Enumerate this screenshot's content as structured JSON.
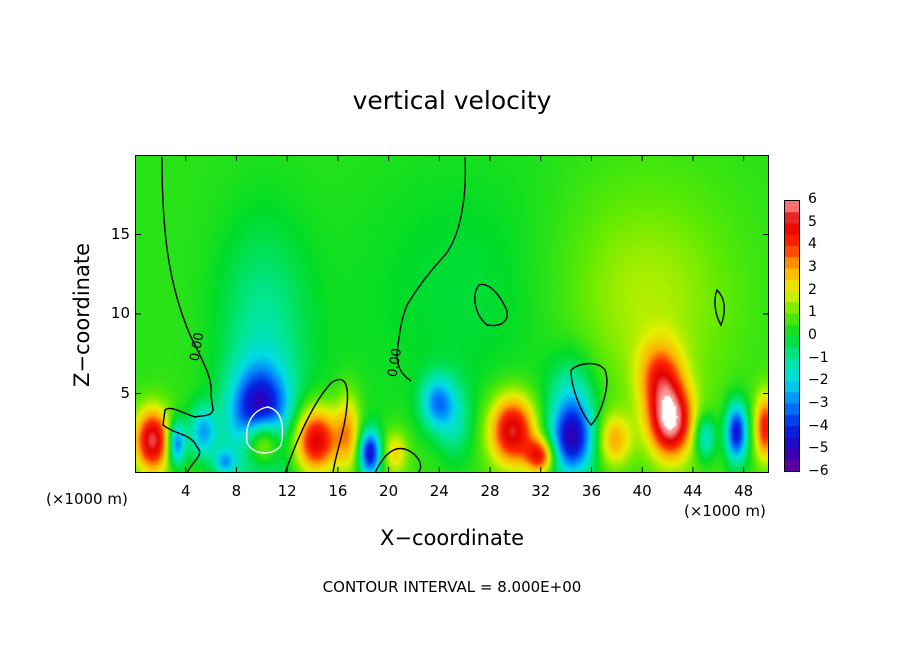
{
  "chart_data": {
    "type": "heatmap",
    "title": "vertical velocity",
    "xlabel": "X−coordinate",
    "ylabel": "Z−coordinate",
    "x_unit_left": "(×1000 m)",
    "x_unit_right": "(×1000 m)",
    "xlim": [
      0,
      50
    ],
    "ylim": [
      0,
      20
    ],
    "x_ticks": [
      4,
      8,
      12,
      16,
      20,
      24,
      28,
      32,
      36,
      40,
      44,
      48
    ],
    "y_ticks": [
      5,
      10,
      15
    ],
    "contour_note": "CONTOUR INTERVAL = 8.000E+00",
    "contour_labels": [
      {
        "text": "0.00",
        "x": 5,
        "z": 7
      },
      {
        "text": "0.00",
        "x": 20.6,
        "z": 6
      }
    ],
    "colorbar": {
      "labels": [
        "6",
        "5",
        "4",
        "3",
        "2",
        "1",
        "0",
        "−1",
        "−2",
        "−3",
        "−4",
        "−5",
        "−6"
      ],
      "range": [
        -6,
        6
      ]
    },
    "features": [
      {
        "x": 9.8,
        "z": 3.2,
        "value": -6,
        "sx": 1.6,
        "sz": 2.2
      },
      {
        "x": 10,
        "z": 2.0,
        "value": 6,
        "sx": 1.1,
        "sz": 1.2
      },
      {
        "x": 10,
        "z": 8.5,
        "value": -1.5,
        "sx": 2.5,
        "sz": 5
      },
      {
        "x": 1.3,
        "z": 2.0,
        "value": 5,
        "sx": 1.0,
        "sz": 1.4
      },
      {
        "x": 3.2,
        "z": 1.8,
        "value": -4,
        "sx": 0.5,
        "sz": 1.0
      },
      {
        "x": 5.3,
        "z": 2.5,
        "value": -3,
        "sx": 0.8,
        "sz": 1.2
      },
      {
        "x": 7,
        "z": 0.6,
        "value": -2.5,
        "sx": 0.6,
        "sz": 0.6
      },
      {
        "x": 14.2,
        "z": 2.0,
        "value": 5,
        "sx": 1.3,
        "sz": 1.5
      },
      {
        "x": 16.8,
        "z": 2.5,
        "value": 2.5,
        "sx": 0.7,
        "sz": 1.8
      },
      {
        "x": 18.5,
        "z": 1.2,
        "value": -5,
        "sx": 0.6,
        "sz": 1.0
      },
      {
        "x": 20.5,
        "z": 1.2,
        "value": 2,
        "sx": 0.7,
        "sz": 1.0
      },
      {
        "x": 23.8,
        "z": 4.4,
        "value": -3,
        "sx": 0.9,
        "sz": 1.2
      },
      {
        "x": 25.2,
        "z": 3.2,
        "value": -1.5,
        "sx": 1.0,
        "sz": 1.8
      },
      {
        "x": 29.8,
        "z": 2.6,
        "value": 5,
        "sx": 1.3,
        "sz": 1.6
      },
      {
        "x": 32,
        "z": 1.0,
        "value": 4,
        "sx": 0.8,
        "sz": 0.8
      },
      {
        "x": 34.5,
        "z": 2.0,
        "value": -4.5,
        "sx": 1.2,
        "sz": 1.5
      },
      {
        "x": 34.5,
        "z": 4.5,
        "value": -2,
        "sx": 1.3,
        "sz": 2.0
      },
      {
        "x": 37.8,
        "z": 2.0,
        "value": 2.5,
        "sx": 1.0,
        "sz": 1.2
      },
      {
        "x": 42.3,
        "z": 3.2,
        "value": 5.5,
        "sx": 1.2,
        "sz": 1.6
      },
      {
        "x": 41.5,
        "z": 6.0,
        "value": 3,
        "sx": 1.2,
        "sz": 1.6
      },
      {
        "x": 40,
        "z": 11,
        "value": 1.2,
        "sx": 5.0,
        "sz": 5.0
      },
      {
        "x": 45,
        "z": 2.2,
        "value": -2.5,
        "sx": 0.6,
        "sz": 1.0
      },
      {
        "x": 47.5,
        "z": 2.5,
        "value": -5,
        "sx": 0.6,
        "sz": 1.3
      },
      {
        "x": 49.8,
        "z": 2.8,
        "value": 4,
        "sx": 0.6,
        "sz": 1.5
      },
      {
        "x": 26,
        "z": 11,
        "value": -0.6,
        "sx": 6.0,
        "sz": 6.0
      }
    ]
  }
}
